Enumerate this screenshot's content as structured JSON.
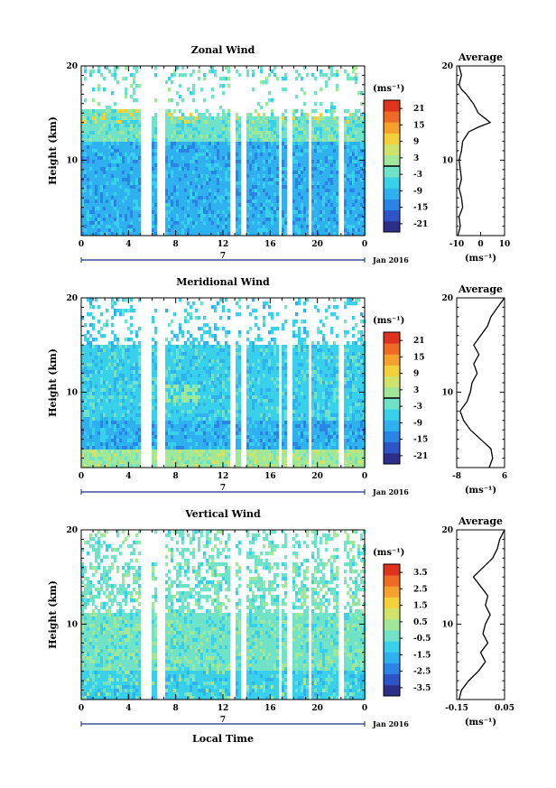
{
  "figure": {
    "xlabel": "Local Time",
    "date_label": "Jan 2016",
    "day_label": "7",
    "avg_title": "Average",
    "colors": {
      "colormap": [
        "#2b2f8a",
        "#2d55c8",
        "#2a84e3",
        "#2fb0ef",
        "#38d0ea",
        "#6fe2c8",
        "#9fe89a",
        "#cfe36b",
        "#f2d13a",
        "#f6a12c",
        "#ef6a24",
        "#e0331d"
      ]
    }
  },
  "chart_data": [
    {
      "type": "heatmap",
      "title": "Zonal Wind",
      "ylabel": "Height (km)",
      "xlim": [
        0,
        24
      ],
      "ylim": [
        2,
        20
      ],
      "x_ticks": [
        "0",
        "4",
        "8",
        "12",
        "16",
        "20",
        "0"
      ],
      "y_ticks": [
        "10",
        "20"
      ],
      "colorbar": {
        "unit": "(ms⁻¹)",
        "range": [
          -24,
          24
        ],
        "ticks": [
          "21",
          "15",
          "9",
          "3",
          "-3",
          "-9",
          "-15",
          "-21"
        ]
      },
      "data_gaps_hours": [
        [
          5.0,
          5.9
        ],
        [
          6.5,
          7.0
        ],
        [
          12.6,
          13.0
        ],
        [
          13.6,
          14.0
        ],
        [
          16.7,
          17.0
        ],
        [
          17.5,
          17.9
        ],
        [
          19.2,
          19.6
        ],
        [
          21.8,
          22.2
        ]
      ],
      "profile": {
        "title": "Average",
        "unit": "(ms⁻¹)",
        "xlim": [
          -10,
          10
        ],
        "x_ticks": [
          "-10",
          "0",
          "10"
        ],
        "height_km": [
          2,
          3,
          4,
          5,
          6,
          7,
          8,
          9,
          10,
          11,
          12,
          13,
          13.5,
          14,
          15,
          16,
          17,
          17.5,
          18,
          19,
          20
        ],
        "values": [
          -9.5,
          -8.5,
          -9,
          -7.5,
          -8,
          -9,
          -8,
          -8.5,
          -9,
          -8,
          -7.5,
          -5,
          -1,
          4,
          -1,
          -3,
          -6,
          -8,
          -9,
          -8,
          -9
        ]
      }
    },
    {
      "type": "heatmap",
      "title": "Meridional Wind",
      "ylabel": "Height (km)",
      "xlim": [
        0,
        24
      ],
      "ylim": [
        2,
        20
      ],
      "x_ticks": [
        "0",
        "4",
        "8",
        "12",
        "16",
        "20",
        "0"
      ],
      "y_ticks": [
        "10",
        "20"
      ],
      "colorbar": {
        "unit": "(ms⁻¹)",
        "range": [
          -24,
          24
        ],
        "ticks": [
          "21",
          "15",
          "9",
          "3",
          "-3",
          "-9",
          "-15",
          "-21"
        ]
      },
      "data_gaps_hours": [
        [
          5.0,
          5.9
        ],
        [
          6.5,
          7.0
        ],
        [
          12.6,
          13.0
        ],
        [
          13.6,
          14.0
        ],
        [
          16.7,
          17.0
        ],
        [
          17.5,
          17.9
        ],
        [
          19.2,
          19.6
        ],
        [
          21.8,
          22.2
        ]
      ],
      "profile": {
        "title": "Average",
        "unit": "(ms⁻¹)",
        "xlim": [
          -8,
          6
        ],
        "x_ticks": [
          "-8",
          "6"
        ],
        "height_km": [
          2,
          3,
          4,
          5,
          6,
          7,
          8,
          9,
          10,
          11,
          12,
          13,
          14,
          15,
          16,
          17,
          18,
          19,
          20
        ],
        "values": [
          1.5,
          2.5,
          2,
          -1,
          -4,
          -6,
          -7,
          -5,
          -4,
          -3.5,
          -2,
          -3,
          -1.5,
          -3,
          -1,
          1,
          2,
          4,
          6
        ]
      }
    },
    {
      "type": "heatmap",
      "title": "Vertical Wind",
      "ylabel": "Height (km)",
      "xlim": [
        0,
        24
      ],
      "ylim": [
        2,
        20
      ],
      "x_ticks": [
        "0",
        "4",
        "8",
        "12",
        "16",
        "20",
        "0"
      ],
      "y_ticks": [
        "10",
        "20"
      ],
      "colorbar": {
        "unit": "(ms⁻¹)",
        "range": [
          -4,
          4
        ],
        "ticks": [
          "3.5",
          "2.5",
          "1.5",
          "0.5",
          "-0.5",
          "-1.5",
          "-2.5",
          "-3.5"
        ]
      },
      "data_gaps_hours": [
        [
          5.0,
          5.9
        ],
        [
          6.5,
          7.0
        ],
        [
          12.6,
          13.0
        ],
        [
          13.6,
          14.0
        ],
        [
          16.7,
          17.0
        ],
        [
          17.5,
          17.9
        ],
        [
          19.2,
          19.6
        ],
        [
          21.8,
          22.2
        ]
      ],
      "profile": {
        "title": "Average",
        "unit": "(ms⁻¹)",
        "xlim": [
          -0.15,
          0.05
        ],
        "x_ticks": [
          "-0.15",
          "0.05"
        ],
        "height_km": [
          2,
          3,
          4,
          5,
          6,
          7,
          8,
          9,
          10,
          11,
          12,
          13,
          14,
          15,
          16,
          17,
          18,
          19,
          20
        ],
        "values": [
          -0.14,
          -0.13,
          -0.1,
          -0.06,
          -0.03,
          -0.05,
          -0.02,
          -0.04,
          -0.03,
          -0.01,
          -0.03,
          -0.02,
          -0.05,
          -0.08,
          -0.04,
          0.0,
          0.02,
          0.03,
          0.05
        ]
      }
    }
  ]
}
